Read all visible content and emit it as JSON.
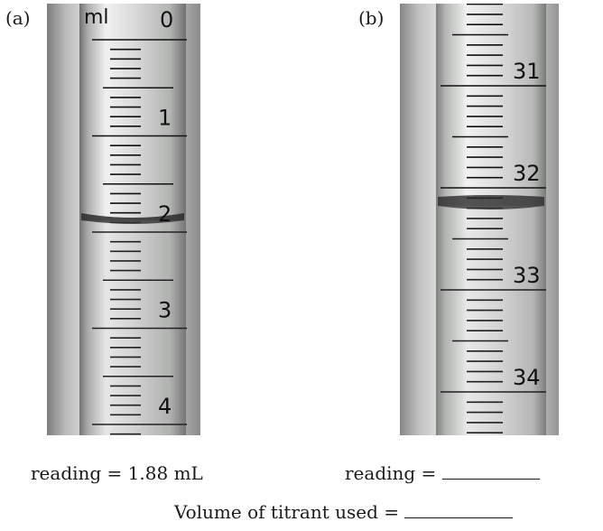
{
  "panels": [
    {
      "id": "a",
      "label": "(a)",
      "unit_text": "ml",
      "numbers": [
        "0",
        "1",
        "2",
        "3",
        "4"
      ]
    },
    {
      "id": "b",
      "label": "(b)",
      "numbers": [
        "31",
        "32",
        "33",
        "34"
      ]
    }
  ],
  "readings": {
    "a": "reading = 1.88 mL",
    "b": "reading = "
  },
  "volume_line": "Volume of titrant used = ",
  "colors": {
    "background": "#ffffff",
    "glass_light": "#d9dad9",
    "glass_dark": "#8e908e",
    "graduation": "#111111"
  }
}
